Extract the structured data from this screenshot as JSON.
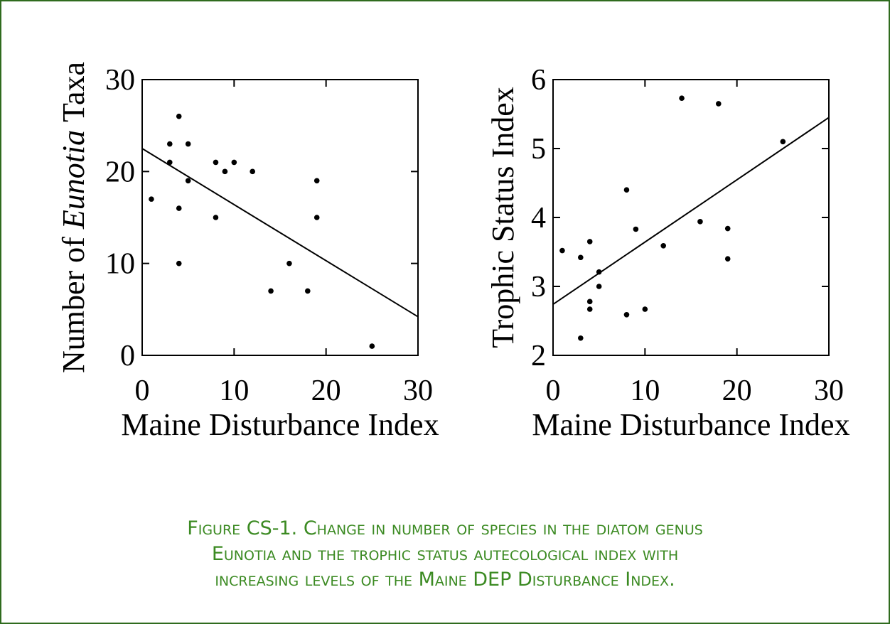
{
  "chart_data": [
    {
      "type": "scatter",
      "xlabel": "Maine Disturbance Index",
      "ylabel": [
        "Number of",
        "Eunotia",
        "Taxa"
      ],
      "xlim": [
        0,
        30
      ],
      "xticks": [
        0,
        10,
        20,
        30
      ],
      "ylim": [
        0,
        30
      ],
      "yticks": [
        0,
        10,
        20,
        30
      ],
      "color": "#000000",
      "series": [
        {
          "x": [
            1,
            3,
            3,
            4,
            4,
            4,
            5,
            5,
            8,
            8,
            9,
            10,
            12,
            14,
            16,
            18,
            19,
            19,
            25
          ],
          "values": [
            17,
            23,
            21,
            26,
            16,
            10,
            23,
            19,
            21,
            15,
            20,
            21,
            20,
            7,
            10,
            7,
            19,
            15,
            1
          ]
        }
      ],
      "fit": {
        "x": [
          0,
          30
        ],
        "values": [
          22.5,
          4.2
        ]
      }
    },
    {
      "type": "scatter",
      "xlabel": "Maine Disturbance Index",
      "ylabel": [
        "Trophic Status Index"
      ],
      "xlim": [
        0,
        30
      ],
      "xticks": [
        0,
        10,
        20,
        30
      ],
      "ylim": [
        2,
        6
      ],
      "yticks": [
        2,
        3,
        4,
        5,
        6
      ],
      "color": "#000000",
      "series": [
        {
          "x": [
            1,
            3,
            3,
            4,
            4,
            4,
            5,
            5,
            8,
            8,
            9,
            10,
            12,
            14,
            16,
            18,
            19,
            19,
            25
          ],
          "values": [
            3.52,
            3.42,
            2.25,
            3.65,
            2.78,
            2.67,
            3.21,
            3.0,
            4.4,
            2.59,
            3.83,
            2.67,
            3.59,
            5.73,
            3.94,
            5.65,
            3.84,
            3.4,
            5.1
          ]
        }
      ],
      "fit": {
        "x": [
          0,
          30
        ],
        "values": [
          2.74,
          5.45
        ]
      }
    }
  ],
  "caption": [
    "Figure CS-1. Change in number of species in the diatom genus",
    "Eunotia and the trophic status autecological index with",
    "increasing levels of the Maine DEP Disturbance Index."
  ]
}
